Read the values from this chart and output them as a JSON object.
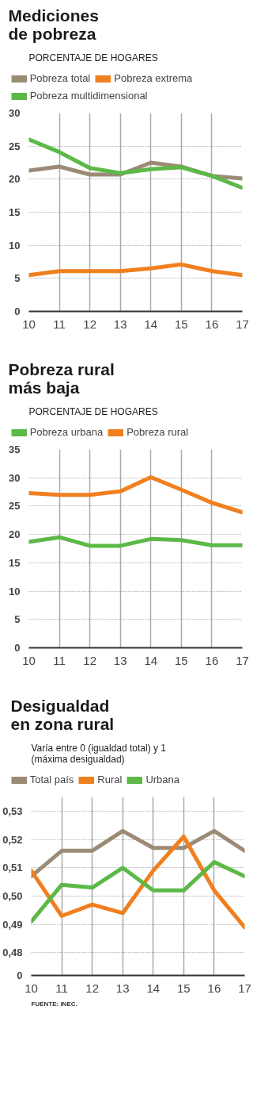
{
  "chart_data": [
    {
      "type": "line",
      "title": "Mediciones\nde pobreza",
      "subtitle": "PORCENTAJE DE HOGARES",
      "x": [
        10,
        11,
        12,
        13,
        14,
        15,
        16,
        17
      ],
      "xlim": [
        10,
        17
      ],
      "xticks": [
        10,
        11,
        12,
        13,
        14,
        15,
        16,
        17
      ],
      "ylim": [
        0,
        30
      ],
      "yticks": [
        0,
        5,
        10,
        15,
        20,
        25,
        30
      ],
      "grid": true,
      "legend": "top",
      "marker": "none",
      "line_style": "solid",
      "series": [
        {
          "name": "Pobreza total",
          "color": "#9b8b76",
          "values": [
            21.3,
            21.9,
            20.7,
            20.7,
            22.5,
            21.9,
            20.5,
            20.1
          ]
        },
        {
          "name": "Pobreza extrema",
          "color": "#f07f1f",
          "values": [
            5.5,
            6.1,
            6.1,
            6.1,
            6.5,
            7.1,
            6.1,
            5.5
          ]
        },
        {
          "name": "Pobreza multidimensional",
          "color": "#5cb947",
          "values": [
            26.0,
            24.1,
            21.7,
            20.9,
            21.5,
            21.8,
            20.5,
            18.7
          ]
        }
      ]
    },
    {
      "type": "line",
      "title": "Pobreza rural\nmás baja",
      "subtitle": "PORCENTAJE DE HOGARES",
      "x": [
        10,
        11,
        12,
        13,
        14,
        15,
        16,
        17
      ],
      "xlim": [
        10,
        17
      ],
      "xticks": [
        10,
        11,
        12,
        13,
        14,
        15,
        16,
        17
      ],
      "ylim": [
        0,
        35
      ],
      "yticks": [
        0,
        5,
        10,
        15,
        20,
        25,
        30,
        35
      ],
      "grid": true,
      "legend": "top",
      "marker": "none",
      "line_style": "solid",
      "series": [
        {
          "name": "Pobreza urbana",
          "color": "#5cb947",
          "values": [
            18.7,
            19.5,
            18.0,
            18.0,
            19.2,
            19.0,
            18.1,
            18.1
          ]
        },
        {
          "name": "Pobreza rural",
          "color": "#f07f1f",
          "values": [
            27.3,
            27.0,
            27.0,
            27.6,
            30.1,
            27.9,
            25.6,
            23.9
          ]
        }
      ]
    },
    {
      "type": "line",
      "title": "Desigualdad\nen zona rural",
      "subtitle": "Varía entre 0 (igualdad total) y 1\n(máxima desigualdad)",
      "x": [
        10,
        11,
        12,
        13,
        14,
        15,
        16,
        17
      ],
      "xlim": [
        10,
        17
      ],
      "xticks": [
        10,
        11,
        12,
        13,
        14,
        15,
        16,
        17
      ],
      "ylim": [
        0.472,
        0.535
      ],
      "yticks": [
        {
          "value": 0.472,
          "label": "0"
        },
        {
          "value": 0.48,
          "label": "0,48"
        },
        {
          "value": 0.49,
          "label": "0,49"
        },
        {
          "value": 0.5,
          "label": "0,50"
        },
        {
          "value": 0.51,
          "label": "0,51"
        },
        {
          "value": 0.52,
          "label": "0,52"
        },
        {
          "value": 0.53,
          "label": "0,53"
        }
      ],
      "grid": true,
      "legend": "top",
      "marker": "none",
      "line_style": "solid",
      "annotations": [
        "FUENTE: INEC."
      ],
      "series": [
        {
          "name": "Total país",
          "color": "#9b8b76",
          "values": [
            0.507,
            0.516,
            0.516,
            0.523,
            0.517,
            0.517,
            0.523,
            0.516
          ]
        },
        {
          "name": "Rural",
          "color": "#f07f1f",
          "values": [
            0.509,
            0.493,
            0.497,
            0.494,
            0.509,
            0.521,
            0.502,
            0.489
          ]
        },
        {
          "name": "Urbana",
          "color": "#5cb947",
          "values": [
            0.491,
            0.504,
            0.503,
            0.51,
            0.502,
            0.502,
            0.512,
            0.507
          ]
        }
      ]
    }
  ]
}
